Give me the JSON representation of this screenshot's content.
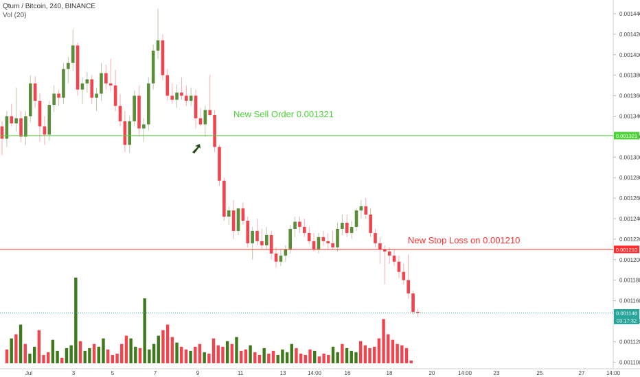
{
  "header": {
    "title": "Qtum / Bitcoin, 240, BINANCE",
    "volume_label": "Vol (20)"
  },
  "colors": {
    "up": "#5b8c3a",
    "down": "#f0444e",
    "volume_up": "#3e7a1c",
    "volume_down": "#f0444e",
    "sell_line": "#4cd137",
    "stop_line": "#ff2e2e",
    "price_line": "#26a69a",
    "arrow": "#1f4a12"
  },
  "annotations": {
    "sell": "New Sell Order 0.001321",
    "stop": "New Stop Loss on 0.001210"
  },
  "chart_data": {
    "type": "candlestick",
    "symbol": "Qtum / Bitcoin",
    "timeframe": "240",
    "exchange": "BINANCE",
    "x_tick_labels": [
      "Jul",
      "3",
      "5",
      "7",
      "9",
      "11",
      "13",
      "14:00",
      "16",
      "18",
      "20",
      "14:00",
      "23",
      "25",
      "27",
      "14:00"
    ],
    "y_tick_labels": [
      "0.001100",
      "0.001120",
      "0.001140",
      "0.001160",
      "0.001180",
      "0.001200",
      "0.001220",
      "0.001240",
      "0.001260",
      "0.001280",
      "0.001300",
      "0.001320",
      "0.001340",
      "0.001360",
      "0.001380",
      "0.001400",
      "0.001420",
      "0.001440"
    ],
    "ylim": [
      0.001095,
      0.001455
    ],
    "horizontal_levels": [
      {
        "label": "New Sell Order 0.001321",
        "value": 0.001321,
        "badge": "0.001321"
      },
      {
        "label": "New Stop Loss on 0.001210",
        "value": 0.00121,
        "badge": "0.001210"
      }
    ],
    "last_price": {
      "value": 0.001148,
      "badge": "0.001148",
      "countdown": "03:17:32"
    },
    "candles_ohlc": [
      [
        0.00133,
        0.001335,
        0.001302,
        0.001318
      ],
      [
        0.001318,
        0.001345,
        0.00131,
        0.00134
      ],
      [
        0.00134,
        0.001352,
        0.00133,
        0.001333
      ],
      [
        0.001333,
        0.001368,
        0.001325,
        0.001338
      ],
      [
        0.001338,
        0.001345,
        0.001315,
        0.00132
      ],
      [
        0.00132,
        0.001345,
        0.001312,
        0.00134
      ],
      [
        0.00134,
        0.00138,
        0.001334,
        0.001372
      ],
      [
        0.001372,
        0.001379,
        0.001348,
        0.001355
      ],
      [
        0.001355,
        0.001362,
        0.001315,
        0.00133
      ],
      [
        0.00133,
        0.00134,
        0.001312,
        0.001322
      ],
      [
        0.001322,
        0.001355,
        0.001316,
        0.001351
      ],
      [
        0.001351,
        0.00137,
        0.001344,
        0.001362
      ],
      [
        0.001362,
        0.001366,
        0.00135,
        0.001358
      ],
      [
        0.001358,
        0.001392,
        0.001352,
        0.001386
      ],
      [
        0.001386,
        0.001398,
        0.001372,
        0.001392
      ],
      [
        0.001392,
        0.001425,
        0.001384,
        0.001409
      ],
      [
        0.001409,
        0.001412,
        0.00136,
        0.001366
      ],
      [
        0.001366,
        0.001378,
        0.001352,
        0.001372
      ],
      [
        0.001372,
        0.001383,
        0.001363,
        0.001376
      ],
      [
        0.001376,
        0.00138,
        0.001352,
        0.001358
      ],
      [
        0.001358,
        0.001368,
        0.001345,
        0.001362
      ],
      [
        0.001362,
        0.001392,
        0.001355,
        0.001382
      ],
      [
        0.001382,
        0.00139,
        0.001366,
        0.001372
      ],
      [
        0.001372,
        0.001396,
        0.001364,
        0.00137
      ],
      [
        0.00137,
        0.001385,
        0.001345,
        0.00135
      ],
      [
        0.00135,
        0.001362,
        0.00133,
        0.001335
      ],
      [
        0.001335,
        0.001345,
        0.001305,
        0.001312
      ],
      [
        0.001312,
        0.00134,
        0.001304,
        0.001335
      ],
      [
        0.001335,
        0.001365,
        0.00133,
        0.00136
      ],
      [
        0.00136,
        0.00137,
        0.00132,
        0.001328
      ],
      [
        0.001328,
        0.001338,
        0.001315,
        0.001332
      ],
      [
        0.001332,
        0.001378,
        0.001326,
        0.001372
      ],
      [
        0.001372,
        0.00141,
        0.001366,
        0.001404
      ],
      [
        0.001404,
        0.001445,
        0.001396,
        0.001414
      ],
      [
        0.001414,
        0.00142,
        0.001375,
        0.00138
      ],
      [
        0.00138,
        0.001386,
        0.001355,
        0.00136
      ],
      [
        0.00136,
        0.001372,
        0.001352,
        0.001356
      ],
      [
        0.001356,
        0.001371,
        0.001348,
        0.001363
      ],
      [
        0.001363,
        0.001378,
        0.001356,
        0.00136
      ],
      [
        0.00136,
        0.00137,
        0.00135,
        0.001355
      ],
      [
        0.001355,
        0.001368,
        0.00135,
        0.00136
      ],
      [
        0.00136,
        0.001366,
        0.001328,
        0.001338
      ],
      [
        0.001338,
        0.001348,
        0.00133,
        0.001332
      ],
      [
        0.001332,
        0.00135,
        0.00132,
        0.001346
      ],
      [
        0.001346,
        0.00138,
        0.00134,
        0.001341
      ],
      [
        0.001341,
        0.001346,
        0.001305,
        0.00131
      ],
      [
        0.00131,
        0.001312,
        0.001272,
        0.001277
      ],
      [
        0.001277,
        0.00128,
        0.001238,
        0.001242
      ],
      [
        0.001242,
        0.001252,
        0.001234,
        0.001248
      ],
      [
        0.001248,
        0.001258,
        0.00122,
        0.001228
      ],
      [
        0.001228,
        0.00125,
        0.001224,
        0.00125
      ],
      [
        0.00125,
        0.001256,
        0.001234,
        0.001238
      ],
      [
        0.001238,
        0.001242,
        0.001212,
        0.001216
      ],
      [
        0.001216,
        0.001232,
        0.0012,
        0.001228
      ],
      [
        0.001228,
        0.00124,
        0.001214,
        0.001218
      ],
      [
        0.001218,
        0.00123,
        0.00121,
        0.001214
      ],
      [
        0.001214,
        0.001232,
        0.00121,
        0.001224
      ],
      [
        0.001224,
        0.001228,
        0.0012,
        0.001206
      ],
      [
        0.001206,
        0.001212,
        0.001192,
        0.001198
      ],
      [
        0.001198,
        0.00121,
        0.001194,
        0.001204
      ],
      [
        0.001204,
        0.001214,
        0.001198,
        0.00121
      ],
      [
        0.00121,
        0.001234,
        0.001206,
        0.00123
      ],
      [
        0.00123,
        0.001242,
        0.001222,
        0.001237
      ],
      [
        0.001237,
        0.001242,
        0.001226,
        0.001232
      ],
      [
        0.001232,
        0.00124,
        0.001222,
        0.001226
      ],
      [
        0.001226,
        0.001232,
        0.001215,
        0.001218
      ],
      [
        0.001218,
        0.001226,
        0.001208,
        0.00121
      ],
      [
        0.00121,
        0.001226,
        0.001206,
        0.001222
      ],
      [
        0.001222,
        0.001228,
        0.001214,
        0.001218
      ],
      [
        0.001218,
        0.001226,
        0.00121,
        0.001216
      ],
      [
        0.001216,
        0.001228,
        0.00121,
        0.001212
      ],
      [
        0.001212,
        0.001236,
        0.001208,
        0.00123
      ],
      [
        0.00123,
        0.001244,
        0.001224,
        0.001236
      ],
      [
        0.001236,
        0.001244,
        0.001222,
        0.001226
      ],
      [
        0.001226,
        0.001238,
        0.00122,
        0.001232
      ],
      [
        0.001232,
        0.00125,
        0.001228,
        0.001248
      ],
      [
        0.001248,
        0.001258,
        0.00124,
        0.001252
      ],
      [
        0.001252,
        0.00126,
        0.00124,
        0.001244
      ],
      [
        0.001244,
        0.00125,
        0.001222,
        0.001226
      ],
      [
        0.001226,
        0.00123,
        0.001212,
        0.001216
      ],
      [
        0.001216,
        0.001222,
        0.001196,
        0.00121
      ],
      [
        0.00121,
        0.001214,
        0.001176,
        0.001208
      ],
      [
        0.001208,
        0.001212,
        0.001196,
        0.001204
      ],
      [
        0.001204,
        0.00121,
        0.001194,
        0.001198
      ],
      [
        0.001198,
        0.001204,
        0.001182,
        0.001188
      ],
      [
        0.001188,
        0.001196,
        0.001176,
        0.00118
      ],
      [
        0.00118,
        0.001205,
        0.001162,
        0.001167
      ],
      [
        0.001167,
        0.00117,
        0.001146,
        0.001149
      ],
      [
        0.001149,
        0.001152,
        0.001144,
        0.001148
      ]
    ],
    "volume": [
      10,
      18,
      21,
      28,
      14,
      7,
      12,
      24,
      6,
      8,
      17,
      9,
      4,
      11,
      13,
      62,
      16,
      9,
      11,
      14,
      12,
      18,
      10,
      6,
      7,
      14,
      20,
      18,
      12,
      11,
      47,
      10,
      14,
      20,
      24,
      28,
      19,
      15,
      12,
      10,
      9,
      12,
      14,
      8,
      7,
      18,
      13,
      12,
      16,
      14,
      19,
      9,
      10,
      13,
      8,
      6,
      11,
      7,
      9,
      6,
      10,
      8,
      14,
      11,
      7,
      6,
      10,
      9,
      5,
      7,
      6,
      12,
      8,
      14,
      11,
      9,
      8,
      16,
      13,
      11,
      12,
      18,
      32,
      21,
      17,
      14,
      13,
      11,
      2
    ]
  }
}
